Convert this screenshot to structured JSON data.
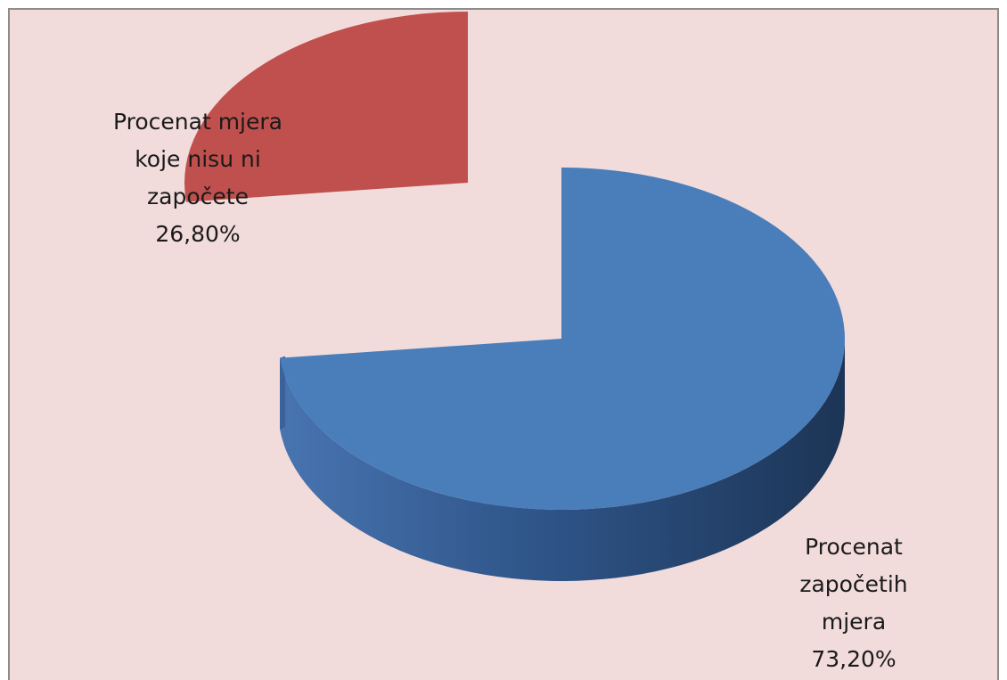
{
  "chart_data": {
    "type": "pie",
    "style": "3d-exploded",
    "title": "",
    "slices": [
      {
        "label_lines": [
          "Procenat",
          "započetih",
          "mjera"
        ],
        "value_label": "73,20%",
        "value": 73.2,
        "color": "#4a7ebb",
        "exploded": false
      },
      {
        "label_lines": [
          "Procenat mjera",
          "koje nisu ni",
          "započete"
        ],
        "value_label": "26,80%",
        "value": 26.8,
        "color": "#c0504d",
        "exploded": true
      }
    ],
    "legend": "none",
    "colors": {
      "background": "#f2dcdb",
      "border": "#8c8c8c"
    }
  }
}
